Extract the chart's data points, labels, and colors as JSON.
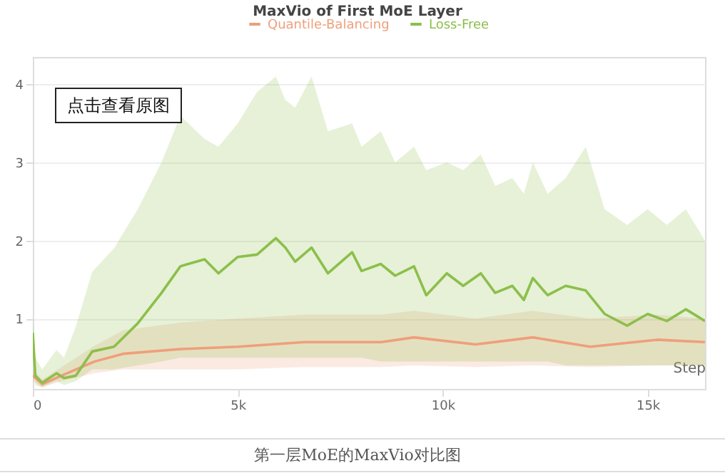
{
  "chart_data": {
    "type": "line",
    "title": "MaxVio of First MoE Layer",
    "xlabel": "Step",
    "legend": "top",
    "grid": "y",
    "xlim": [
      0,
      16400
    ],
    "xticks": [
      0,
      {
        "value": 5000,
        "label": "5k"
      },
      {
        "value": 10000,
        "label": "10k"
      },
      {
        "value": 15000,
        "label": "15k"
      }
    ],
    "ylim": [
      0.1,
      4.35
    ],
    "yticks": [
      1,
      2,
      3,
      4
    ],
    "annotations": [
      "点击查看原图",
      "第一层MoE的MaxVio对比图"
    ],
    "series": [
      {
        "name": "Quantile-Balancing",
        "color": "#ef9f7b",
        "x": [
          0,
          230,
          700,
          1500,
          2200,
          3600,
          5000,
          6630,
          8500,
          9300,
          10800,
          12200,
          13600,
          15230,
          16400
        ],
        "values": [
          0.27,
          0.16,
          0.27,
          0.45,
          0.55,
          0.61,
          0.64,
          0.7,
          0.7,
          0.76,
          0.67,
          0.76,
          0.64,
          0.73,
          0.7
        ],
        "lower": [
          0.2,
          0.12,
          0.2,
          0.3,
          0.35,
          0.35,
          0.35,
          0.38,
          0.38,
          0.4,
          0.38,
          0.4,
          0.38,
          0.4,
          0.4
        ],
        "upper": [
          0.35,
          0.22,
          0.38,
          0.65,
          0.85,
          0.95,
          1.0,
          1.05,
          1.05,
          1.1,
          1.0,
          1.1,
          1.0,
          1.05,
          1.0
        ]
      },
      {
        "name": "Loss-Free",
        "color": "#8cbf4b",
        "x": [
          0,
          60,
          230,
          580,
          760,
          1050,
          1450,
          1980,
          2560,
          3140,
          3600,
          4190,
          4530,
          5000,
          5470,
          5930,
          6160,
          6400,
          6800,
          7200,
          7790,
          8020,
          8490,
          8840,
          9300,
          9600,
          10100,
          10500,
          10930,
          11280,
          11700,
          11980,
          12200,
          12560,
          13000,
          13490,
          13950,
          14500,
          15000,
          15470,
          15930,
          16400
        ],
        "values": [
          0.82,
          0.27,
          0.18,
          0.3,
          0.24,
          0.27,
          0.58,
          0.64,
          0.94,
          1.33,
          1.67,
          1.76,
          1.58,
          1.79,
          1.82,
          2.03,
          1.91,
          1.73,
          1.91,
          1.58,
          1.85,
          1.61,
          1.7,
          1.55,
          1.67,
          1.3,
          1.58,
          1.42,
          1.58,
          1.33,
          1.42,
          1.24,
          1.52,
          1.3,
          1.42,
          1.36,
          1.06,
          0.91,
          1.06,
          0.97,
          1.12,
          0.97
        ],
        "lower": [
          0.5,
          0.15,
          0.12,
          0.2,
          0.15,
          0.2,
          0.35,
          0.35,
          0.4,
          0.45,
          0.5,
          0.5,
          0.5,
          0.5,
          0.5,
          0.5,
          0.5,
          0.5,
          0.5,
          0.5,
          0.5,
          0.5,
          0.45,
          0.45,
          0.45,
          0.45,
          0.45,
          0.45,
          0.45,
          0.45,
          0.45,
          0.45,
          0.45,
          0.45,
          0.4,
          0.4,
          0.4,
          0.4,
          0.4,
          0.4,
          0.4,
          0.4
        ],
        "upper": [
          1.0,
          0.5,
          0.35,
          0.6,
          0.5,
          0.9,
          1.6,
          1.9,
          2.4,
          3.0,
          3.6,
          3.3,
          3.2,
          3.5,
          3.9,
          4.1,
          3.8,
          3.7,
          4.1,
          3.4,
          3.5,
          3.2,
          3.4,
          3.0,
          3.2,
          2.9,
          3.0,
          2.9,
          3.1,
          2.7,
          2.8,
          2.6,
          3.0,
          2.6,
          2.8,
          3.2,
          2.4,
          2.2,
          2.4,
          2.2,
          2.4,
          2.0
        ]
      }
    ]
  }
}
